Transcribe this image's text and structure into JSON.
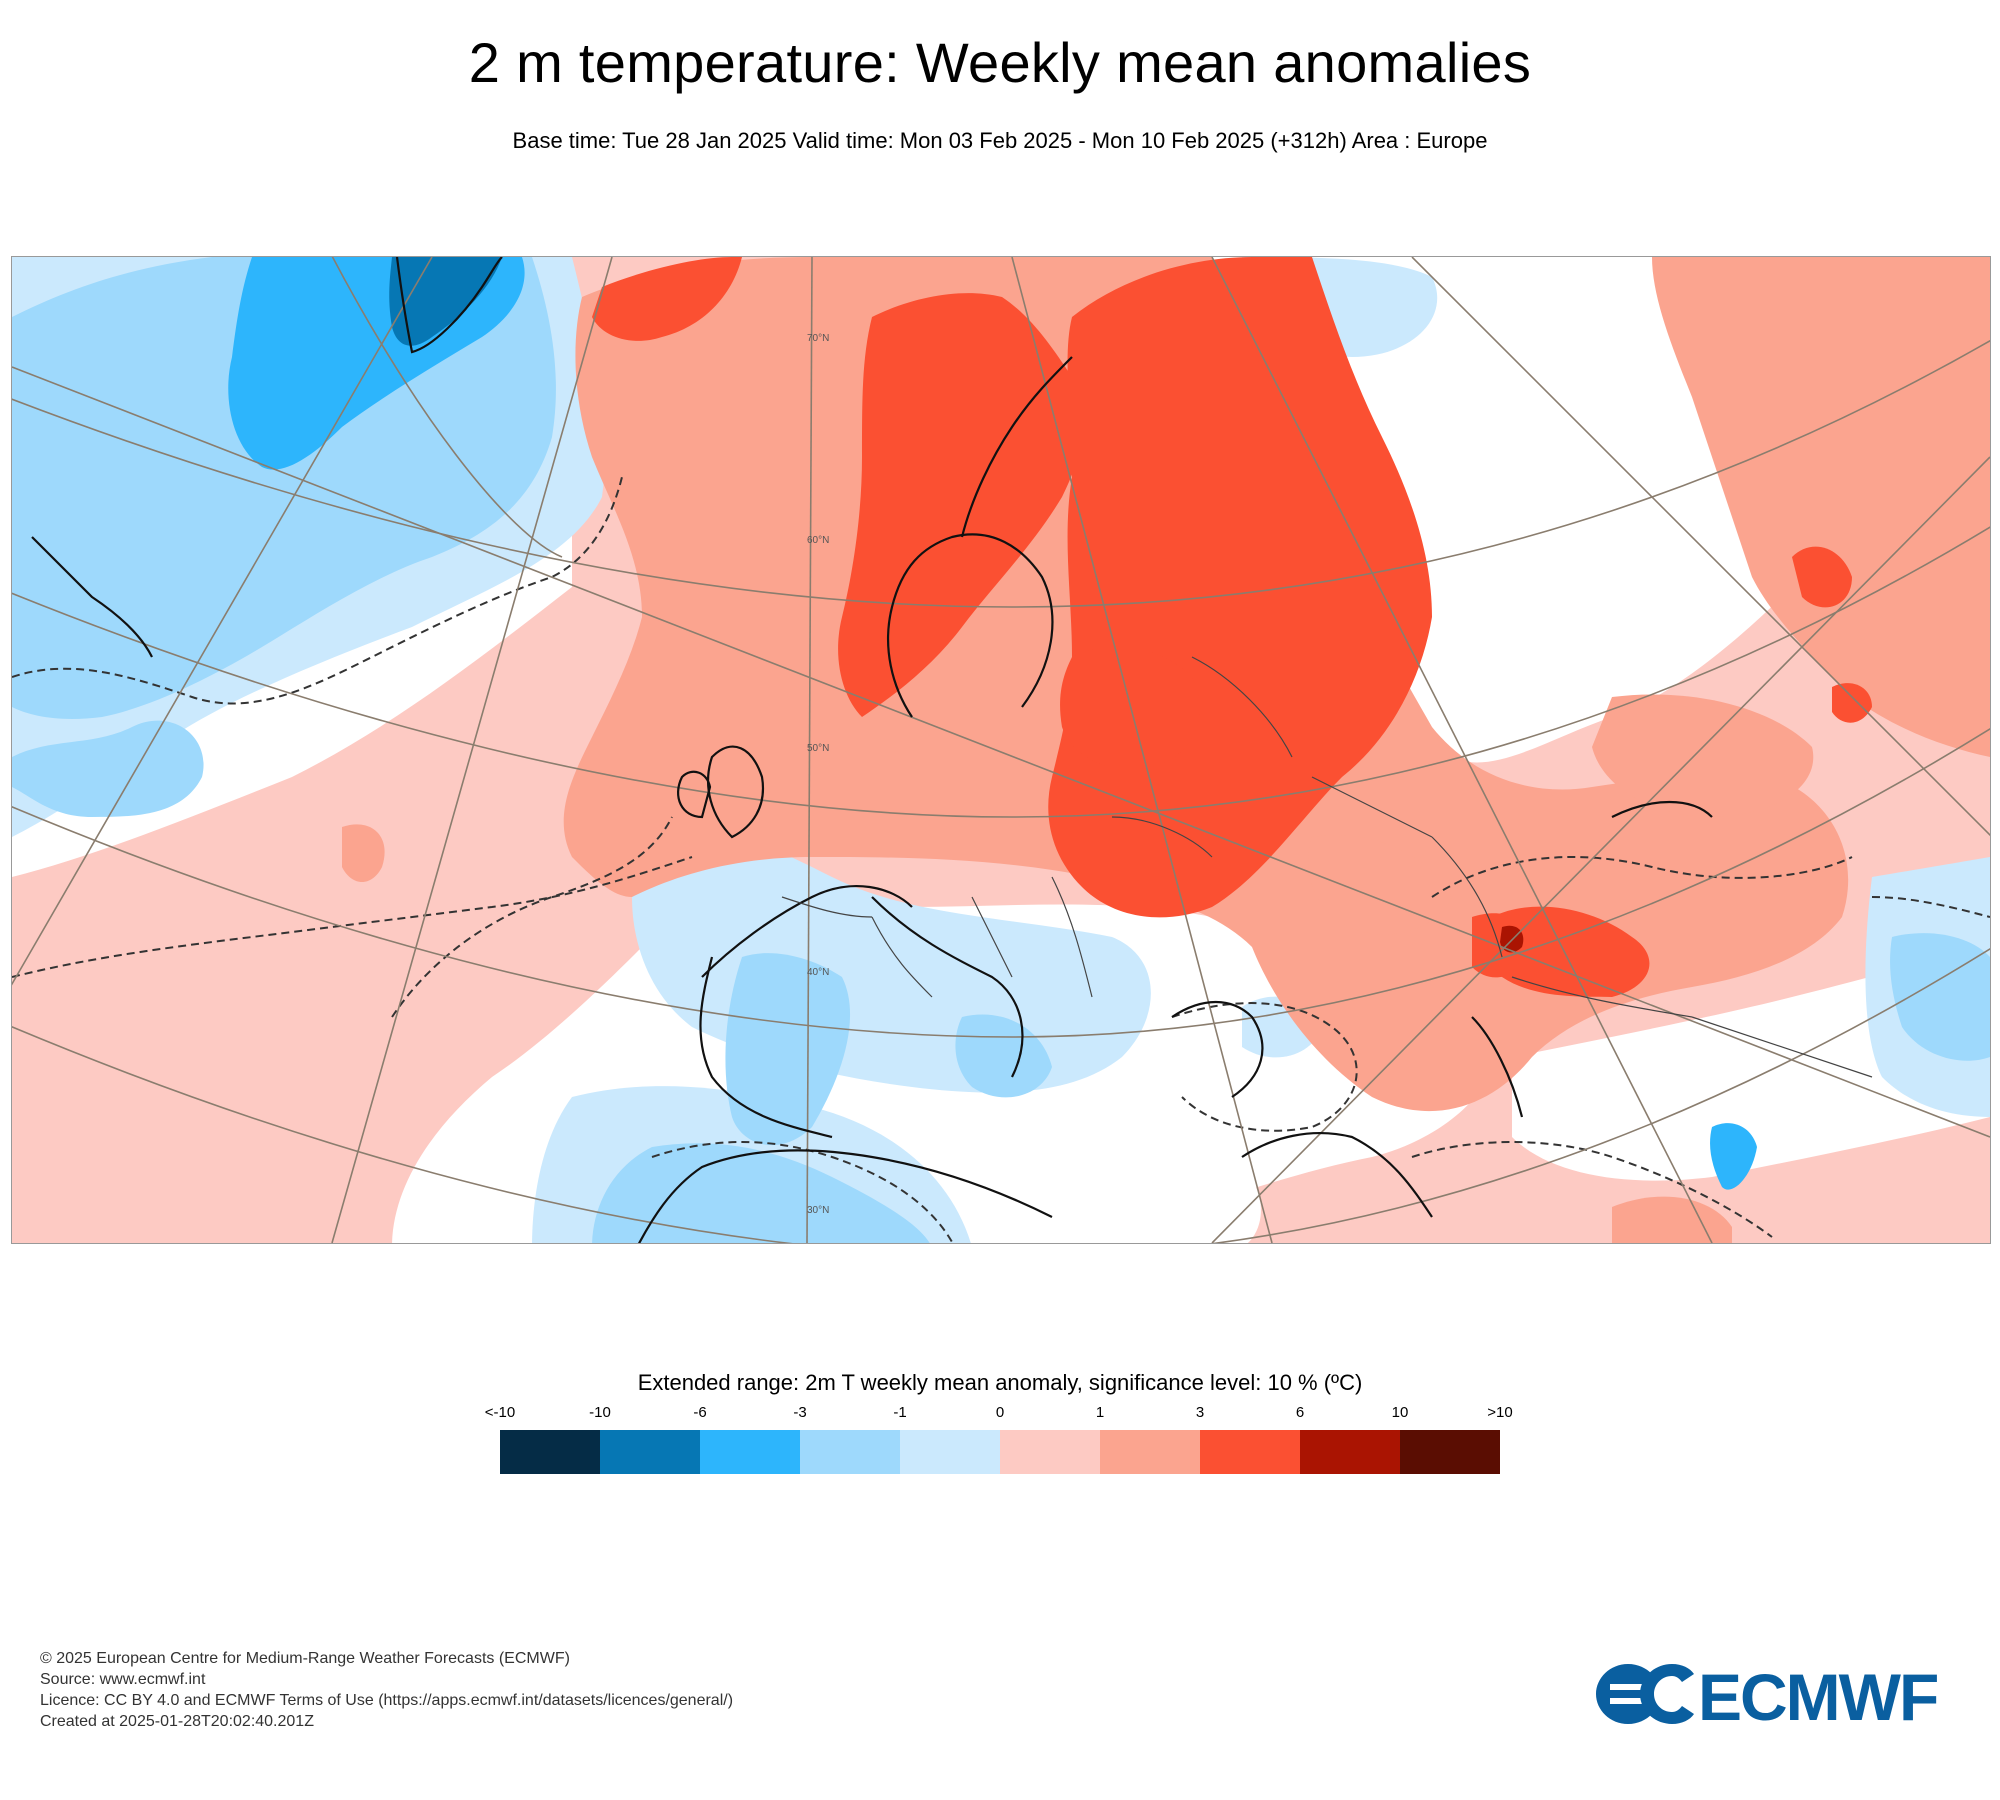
{
  "title": "2 m temperature: Weekly mean anomalies",
  "subtitle": "Base time: Tue 28 Jan 2025 Valid time: Mon 03 Feb 2025 - Mon 10 Feb 2025 (+312h) Area : Europe",
  "map": {
    "latitude_labels": [
      "70°N",
      "60°N",
      "50°N",
      "40°N",
      "30°N"
    ]
  },
  "legend": {
    "title": "Extended range: 2m T weekly mean anomaly, significance level: 10 % (ºC)",
    "ticks": [
      "<-10",
      "-10",
      "-6",
      "-3",
      "-1",
      "0",
      "1",
      "3",
      "6",
      "10",
      ">10"
    ],
    "colors": [
      "#052c46",
      "#0677b4",
      "#2db5fc",
      "#9ed9fc",
      "#cbe9fd",
      "#fdcac3",
      "#fba48f",
      "#fb5032",
      "#aa1402",
      "#5a0d02"
    ]
  },
  "footer": {
    "lines": [
      "© 2025 European Centre for Medium-Range Weather Forecasts (ECMWF)",
      "Source: www.ecmwf.int",
      "Licence: CC BY 4.0 and ECMWF Terms of Use (https://apps.ecmwf.int/datasets/licences/general/)",
      "Created at 2025-01-28T20:02:40.201Z"
    ]
  },
  "logo": {
    "text": "ECMWF",
    "color": "#0a5fa0"
  }
}
